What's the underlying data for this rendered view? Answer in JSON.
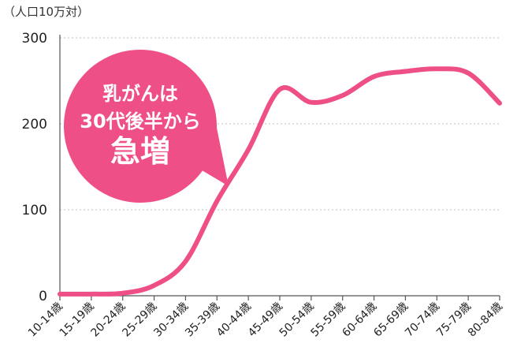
{
  "unit_label": "（人口10万対）",
  "callout": {
    "line1": "乳がんは",
    "line2": "30代後半から",
    "line3": "急増",
    "color": "#ef4f87"
  },
  "chart_data": {
    "type": "line",
    "title": "",
    "ylabel": "（人口10万対）",
    "xlabel": "",
    "ylim": [
      0,
      300
    ],
    "yticks": [
      0,
      100,
      200,
      300
    ],
    "grid": true,
    "categories": [
      "10-14歳",
      "15-19歳",
      "20-24歳",
      "25-29歳",
      "30-34歳",
      "35-39歳",
      "40-44歳",
      "45-49歳",
      "50-54歳",
      "55-59歳",
      "60-64歳",
      "65-69歳",
      "70-74歳",
      "75-79歳",
      "80-84歳"
    ],
    "series": [
      {
        "values": [
          2,
          2,
          3,
          12,
          40,
          110,
          170,
          240,
          225,
          233,
          255,
          261,
          264,
          259,
          224
        ],
        "color": "#ef4f87"
      }
    ]
  }
}
